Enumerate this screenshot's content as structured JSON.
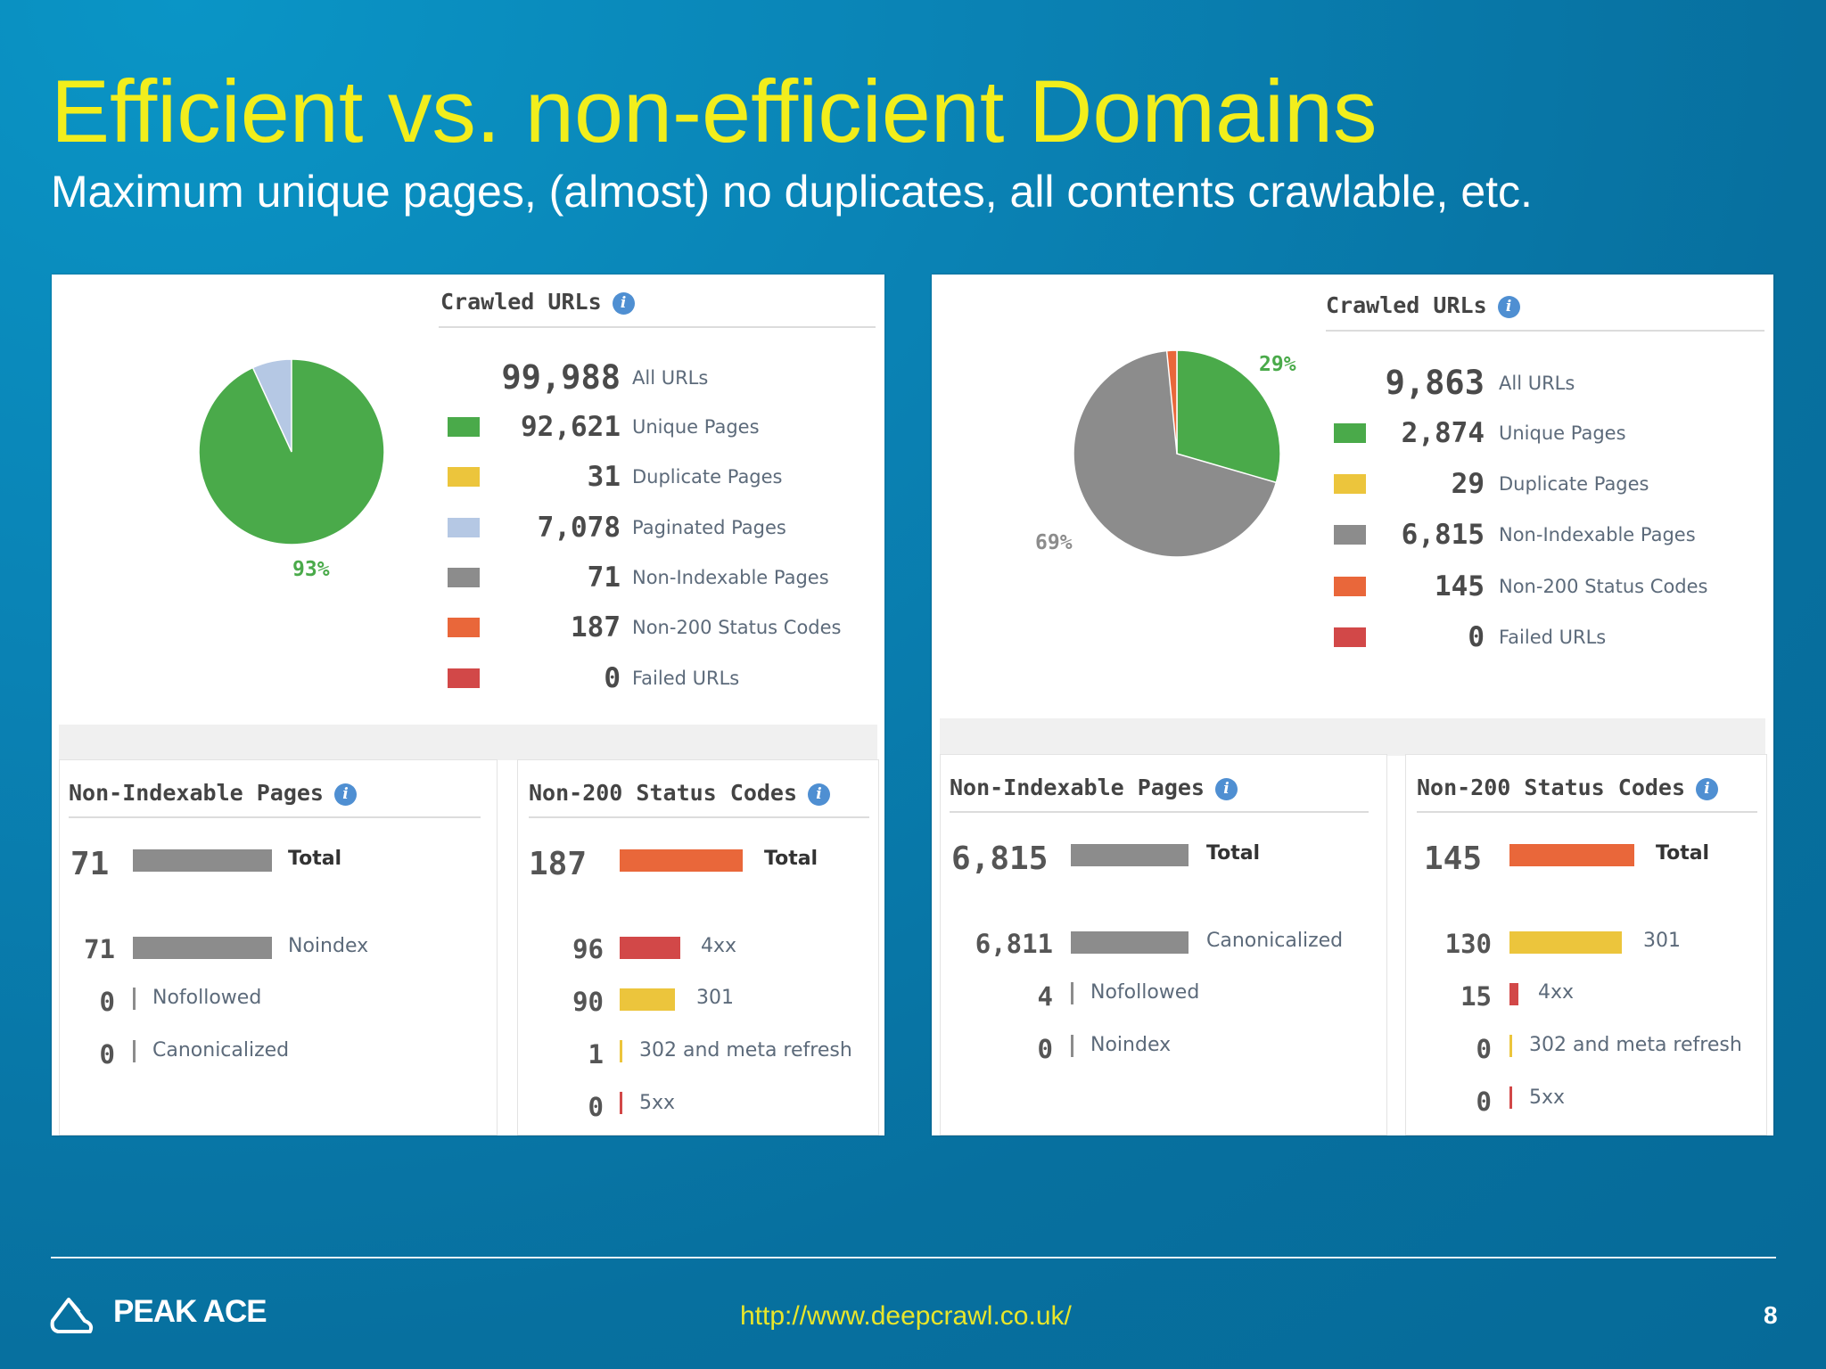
{
  "slide": {
    "title": "Efficient vs. non-efficient Domains",
    "subtitle": "Maximum unique pages, (almost) no duplicates, all contents crawlable, etc."
  },
  "left": {
    "crawled_title": "Crawled URLs",
    "pie_label": "93%",
    "all": {
      "num": "99,988",
      "label": "All URLs"
    },
    "rows": [
      {
        "num": "92,621",
        "label": "Unique Pages",
        "color": "#4aaa4a"
      },
      {
        "num": "31",
        "label": "Duplicate Pages",
        "color": "#ecc53c"
      },
      {
        "num": "7,078",
        "label": "Paginated Pages",
        "color": "#b5c8e4"
      },
      {
        "num": "71",
        "label": "Non-Indexable Pages",
        "color": "#8c8c8c"
      },
      {
        "num": "187",
        "label": "Non-200 Status Codes",
        "color": "#e9673a"
      },
      {
        "num": "0",
        "label": "Failed URLs",
        "color": "#d24848"
      }
    ],
    "non_indexable": {
      "title": "Non-Indexable Pages",
      "total_num": "71",
      "total_label": "Total",
      "items": [
        {
          "num": "71",
          "label": "Noindex"
        },
        {
          "num": "0",
          "label": "Nofollowed"
        },
        {
          "num": "0",
          "label": "Canonicalized"
        }
      ]
    },
    "non200": {
      "title": "Non-200 Status Codes",
      "total_num": "187",
      "total_label": "Total",
      "items": [
        {
          "num": "96",
          "label": "4xx"
        },
        {
          "num": "90",
          "label": "301"
        },
        {
          "num": "1",
          "label": "302 and meta refresh"
        },
        {
          "num": "0",
          "label": "5xx"
        }
      ]
    }
  },
  "right": {
    "crawled_title": "Crawled URLs",
    "pie_label_green": "29%",
    "pie_label_gray": "69%",
    "all": {
      "num": "9,863",
      "label": "All URLs"
    },
    "rows": [
      {
        "num": "2,874",
        "label": "Unique Pages",
        "color": "#4aaa4a"
      },
      {
        "num": "29",
        "label": "Duplicate Pages",
        "color": "#ecc53c"
      },
      {
        "num": "6,815",
        "label": "Non-Indexable Pages",
        "color": "#8c8c8c"
      },
      {
        "num": "145",
        "label": "Non-200 Status Codes",
        "color": "#e9673a"
      },
      {
        "num": "0",
        "label": "Failed URLs",
        "color": "#d24848"
      }
    ],
    "non_indexable": {
      "title": "Non-Indexable Pages",
      "total_num": "6,815",
      "total_label": "Total",
      "items": [
        {
          "num": "6,811",
          "label": "Canonicalized"
        },
        {
          "num": "4",
          "label": "Nofollowed"
        },
        {
          "num": "0",
          "label": "Noindex"
        }
      ]
    },
    "non200": {
      "title": "Non-200 Status Codes",
      "total_num": "145",
      "total_label": "Total",
      "items": [
        {
          "num": "130",
          "label": "301"
        },
        {
          "num": "15",
          "label": "4xx"
        },
        {
          "num": "0",
          "label": "302 and meta refresh"
        },
        {
          "num": "0",
          "label": "5xx"
        }
      ]
    }
  },
  "footer": {
    "logo_text": "PEAK ACE",
    "url": "http://www.deepcrawl.co.uk/",
    "page": "8"
  }
}
